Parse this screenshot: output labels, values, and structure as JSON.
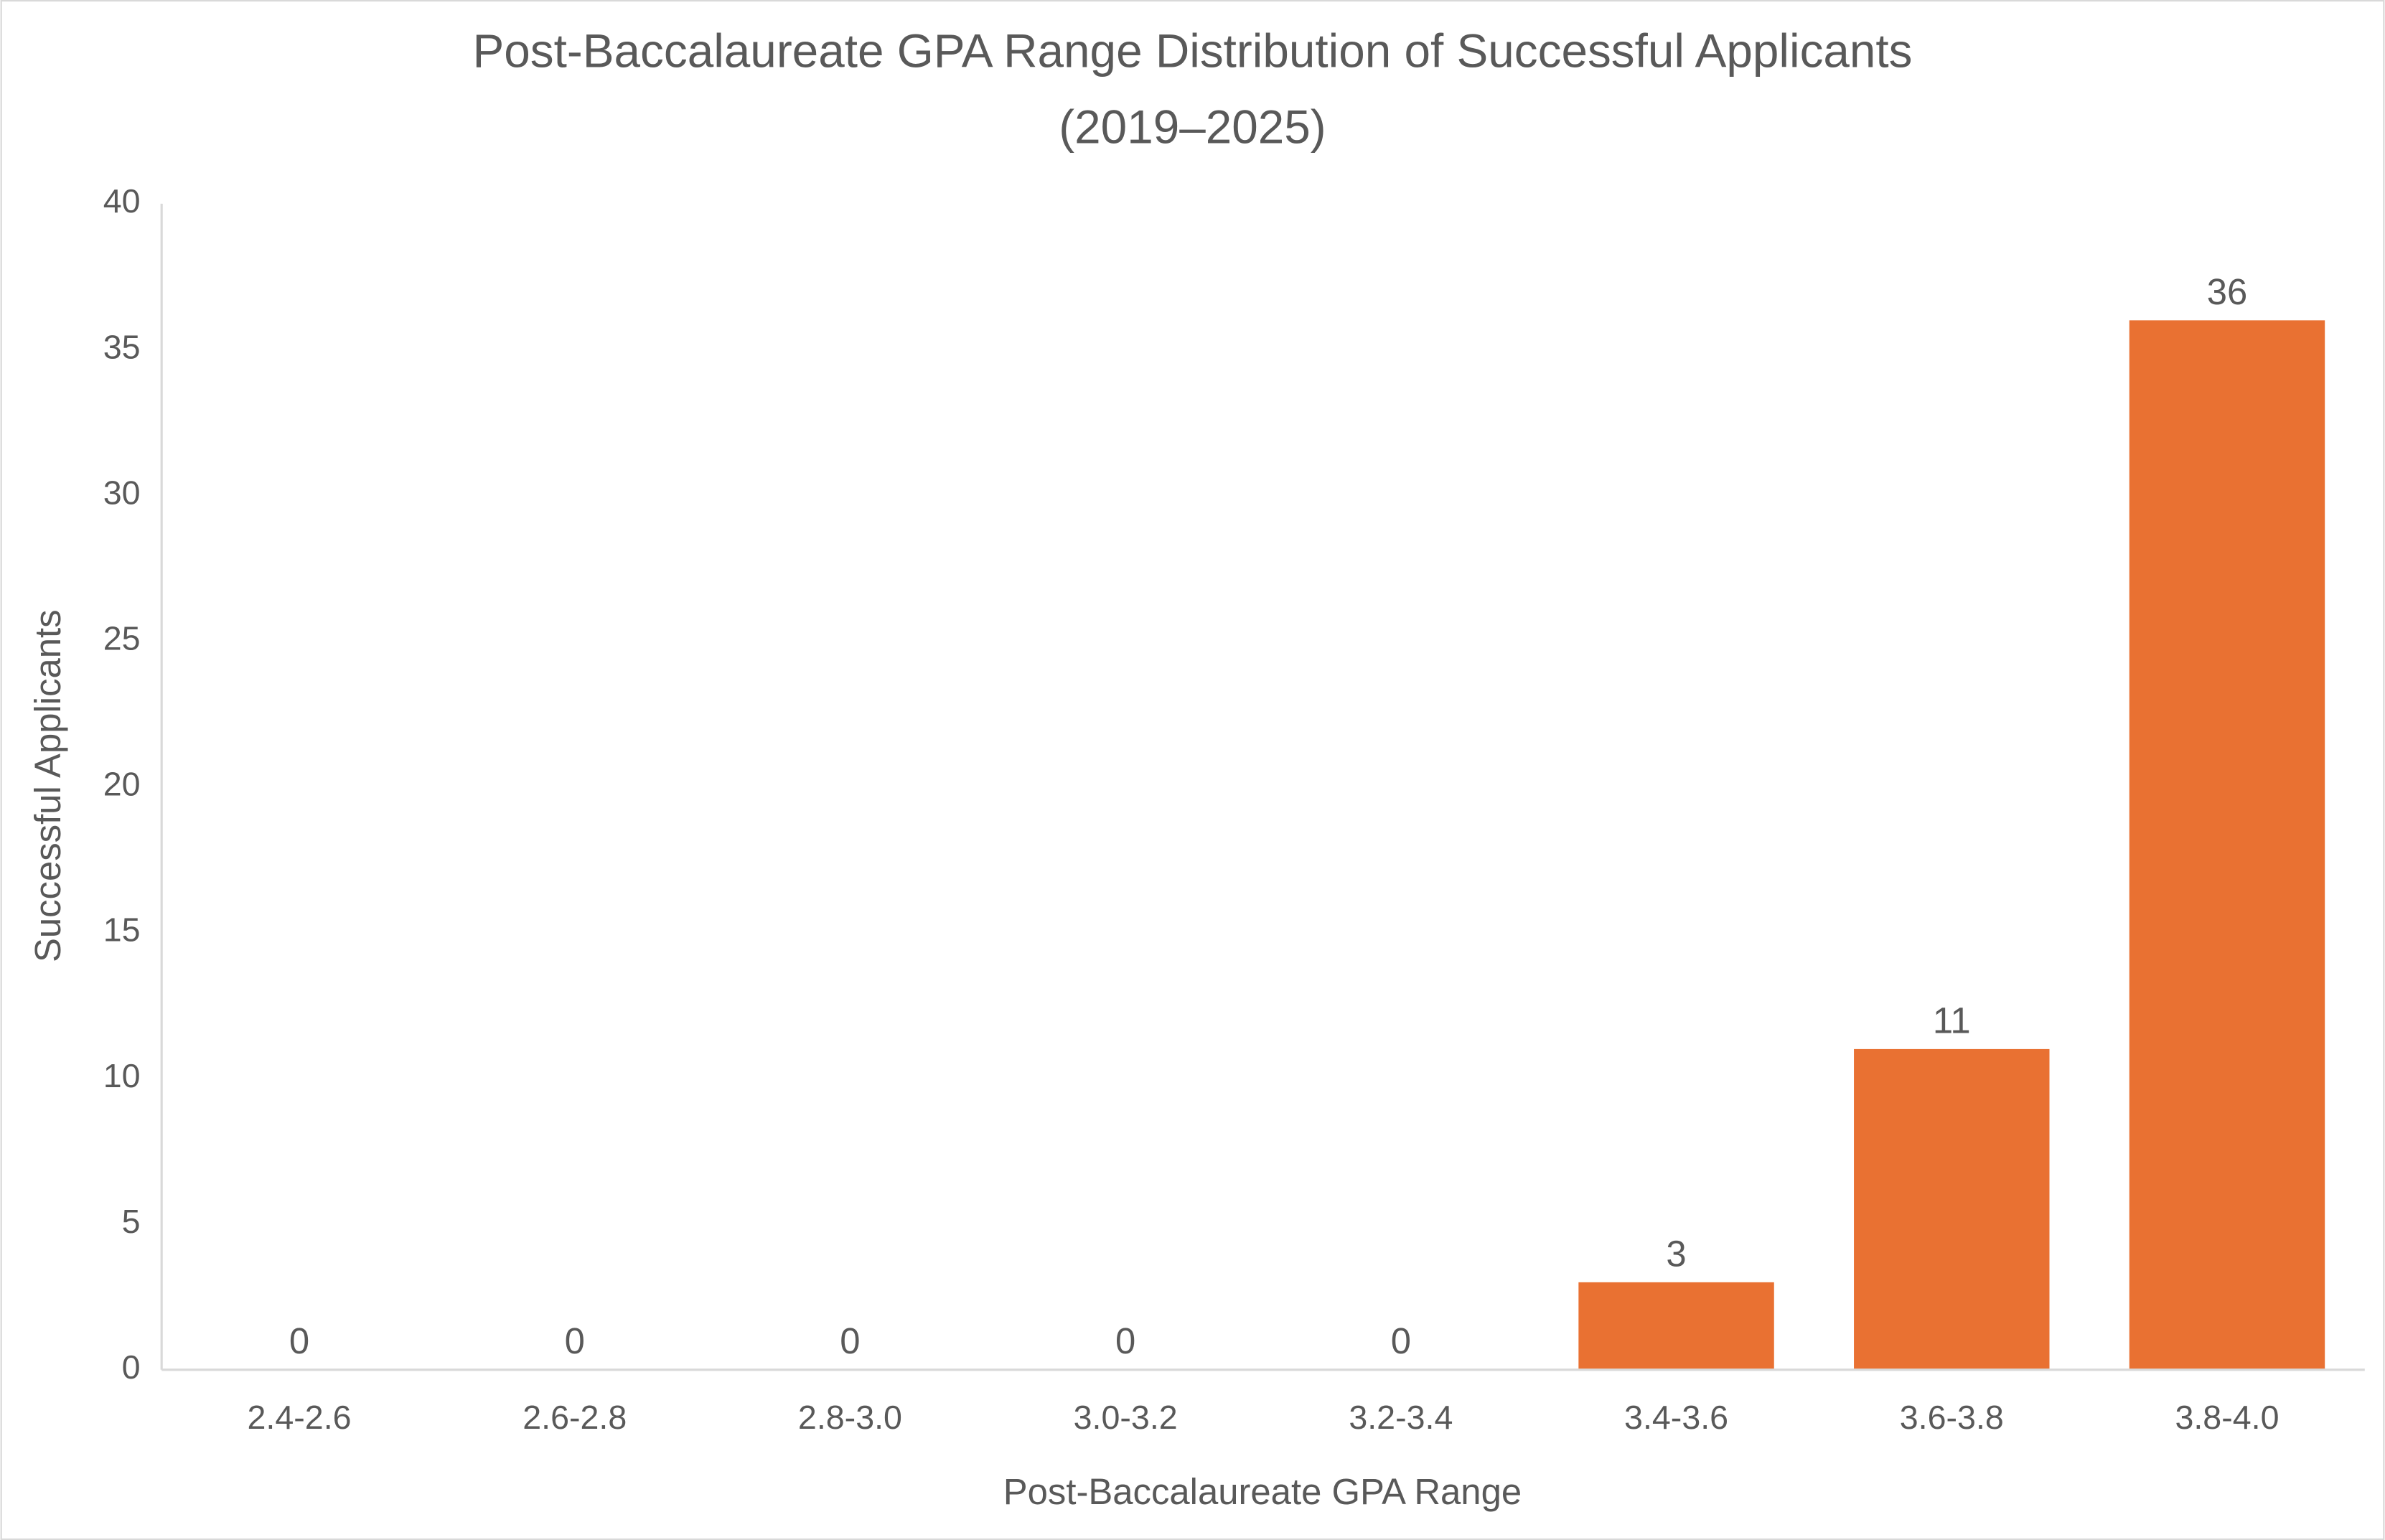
{
  "chart_data": {
    "type": "bar",
    "title": [
      "Post-Baccalaureate GPA Range Distribution of Successful Applicants",
      "(2019–2025)"
    ],
    "x_label": "Post-Baccalaureate GPA Range",
    "y_label": "Successful Applicants",
    "categories": [
      "2.4-2.6",
      "2.6-2.8",
      "2.8-3.0",
      "3.0-3.2",
      "3.2-3.4",
      "3.4-3.6",
      "3.6-3.8",
      "3.8-4.0"
    ],
    "values": [
      0,
      0,
      0,
      0,
      0,
      3,
      11,
      36
    ],
    "color": "#e97132",
    "ylim": [
      0,
      40
    ],
    "yticks": [
      0,
      5,
      10,
      15,
      20,
      25,
      30,
      35,
      40
    ],
    "grid": false,
    "data_labels": true
  }
}
